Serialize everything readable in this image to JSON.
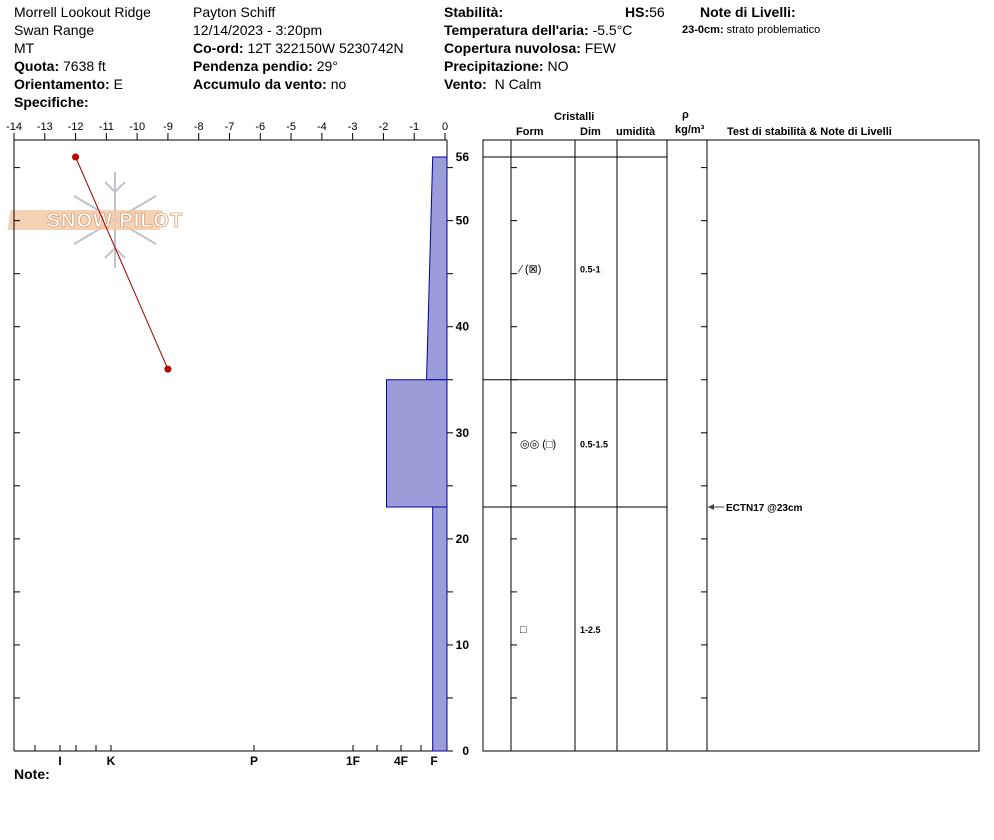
{
  "header": {
    "location": "Morrell Lookout Ridge",
    "range": "Swan Range",
    "state": "MT",
    "elevation_label": "Quota:",
    "elevation_value": "7638 ft",
    "aspect_label": "Orientamento:",
    "aspect_value": "E",
    "specifics_label": "Specifiche:",
    "observer": "Payton Schiff",
    "datetime": "12/14/2023 - 3:20pm",
    "coord_label": "Co-ord:",
    "coord_value": "12T 322150W 5230742N",
    "slope_label": "Pendenza pendio:",
    "slope_value": "29°",
    "wind_loading_label": "Accumulo da vento:",
    "wind_loading_value": "no",
    "stability_label": "Stabilità:",
    "hs_label": "HS:",
    "hs_value": "56",
    "air_temp_label": "Temperatura dell'aria:",
    "air_temp_value": "-5.5°C",
    "cloud_label": "Copertura nuvolosa:",
    "cloud_value": "FEW",
    "precip_label": "Precipitazione:",
    "precip_value": "NO",
    "wind_label": "Vento:",
    "wind_value": "N Calm",
    "layer_notes_label": "Note di Livelli:",
    "layer_note_depth": "23-0cm:",
    "layer_note_text": "strato problematico"
  },
  "watermark": "SNOW PILOT",
  "footer_note_label": "Note:",
  "table": {
    "crystals_label": "Cristalli",
    "form_label": "Form",
    "dim_label": "Dim",
    "humidity_label": "umidità",
    "rho_label": "ρ",
    "density_unit": "kg/m³",
    "tests_label": "Test di stabilità & Note di Livelli",
    "layers": [
      {
        "top": 56,
        "bottom": 35,
        "form": "⁄ (⊠)",
        "dim": "0.5-1"
      },
      {
        "top": 35,
        "bottom": 23,
        "form": "◎◎ (□)",
        "dim": "0.5-1.5"
      },
      {
        "top": 23,
        "bottom": 0,
        "form": "□",
        "dim": "1-2.5"
      }
    ],
    "test_note": "ECTN17 @23cm",
    "test_depth": 23
  },
  "chart_data": {
    "type": "line",
    "temperature_axis": {
      "range": [
        -14,
        0
      ],
      "ticks": [
        "-14",
        "-13",
        "-12",
        "-11",
        "-10",
        "-9",
        "-8",
        "-7",
        "-6",
        "-5",
        "-4",
        "-3",
        "-2",
        "-1",
        "0"
      ]
    },
    "height_axis": {
      "range": [
        0,
        56
      ],
      "ticks": [
        "0",
        "10",
        "20",
        "30",
        "40",
        "50",
        "56"
      ]
    },
    "hardness_ticks": [
      "I",
      "K",
      "P",
      "1F",
      "4F",
      "F"
    ],
    "temperature_profile": [
      {
        "temp": -12,
        "height": 56
      },
      {
        "temp": -9,
        "height": 36
      }
    ],
    "hardness_profile": [
      {
        "top": 56,
        "bottom": 35,
        "temp_at_top": -0.4,
        "temp_at_bottom": -0.6
      },
      {
        "top": 35,
        "bottom": 23,
        "temp_at_top": -1.9,
        "temp_at_bottom": -1.9
      },
      {
        "top": 23,
        "bottom": 0,
        "temp_at_top": -0.4,
        "temp_at_bottom": -0.4
      }
    ],
    "colors": {
      "profile_fill": "#9c9cd8",
      "profile_edge": "#0000aa",
      "temp_line": "#990000",
      "temp_point": "#cc0000"
    }
  }
}
